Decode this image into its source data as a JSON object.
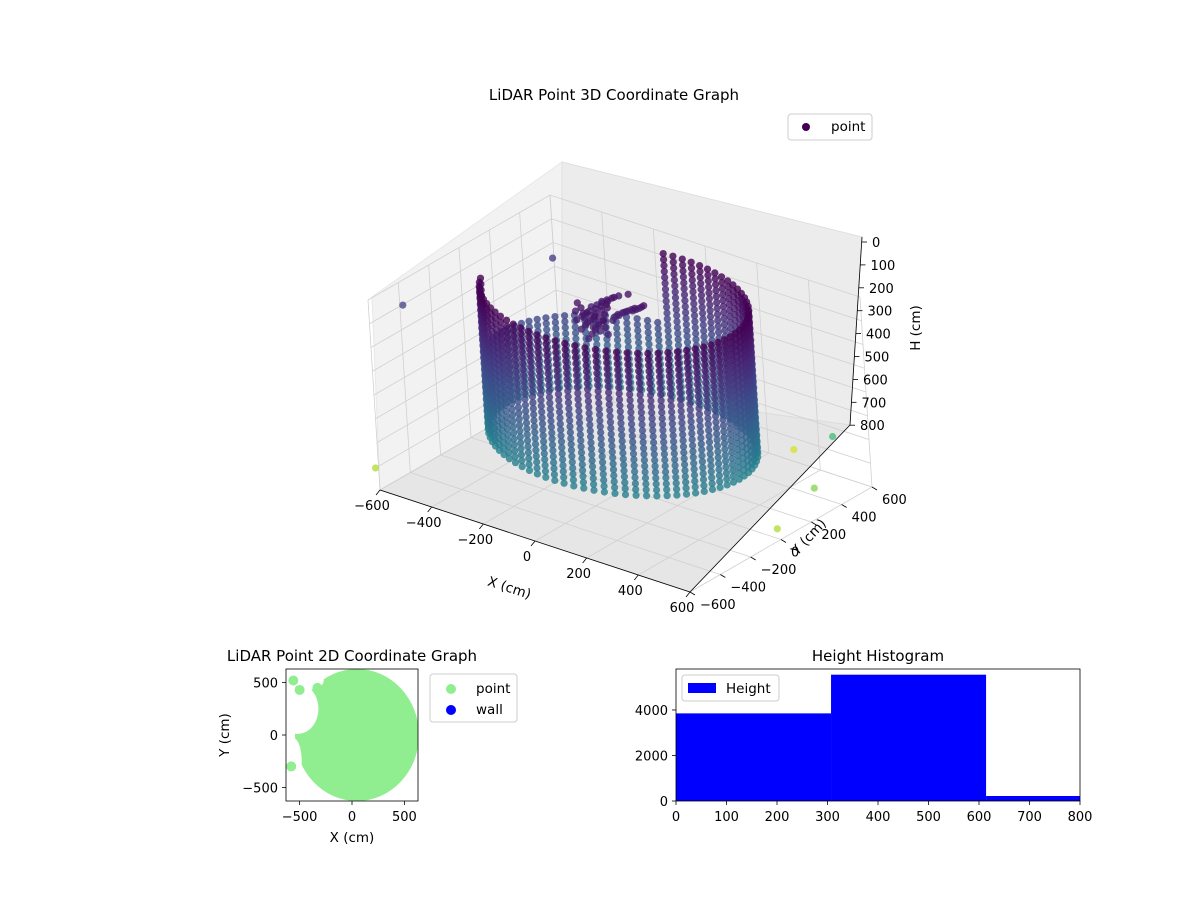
{
  "chart_data": [
    {
      "type": "scatter3d",
      "title": "LiDAR Point 3D Coordinate Graph",
      "xlabel": "X (cm)",
      "ylabel": "Y (cm)",
      "zlabel": "H (cm)",
      "xlim": [
        -600,
        600
      ],
      "ylim": [
        -600,
        600
      ],
      "zlim": [
        800,
        0
      ],
      "xticks": [
        "−600",
        "−400",
        "−200",
        "0",
        "200",
        "400",
        "600"
      ],
      "yticks": [
        "−600",
        "−400",
        "−200",
        "0",
        "200",
        "400",
        "600"
      ],
      "zticks": [
        "0",
        "100",
        "200",
        "300",
        "400",
        "500",
        "600",
        "700",
        "800"
      ],
      "legend": {
        "entries": [
          "point"
        ],
        "placement": "top-right"
      },
      "colormap": "viridis",
      "series": [
        {
          "name": "point",
          "description_shape": "cylindrical wall of points, radius ~450 cm, heights 0-600 cm, plus a few ceiling fragments near the top",
          "wall_radius": 450,
          "wall_height_range": [
            0,
            600
          ],
          "outliers": [
            {
              "x": -650,
              "y": -300,
              "h": 150
            },
            {
              "x": -450,
              "y": 350,
              "h": 120
            },
            {
              "x": 550,
              "y": 450,
              "h": 550
            },
            {
              "x": 620,
              "y": 200,
              "h": 650
            },
            {
              "x": 650,
              "y": -100,
              "h": 700
            },
            {
              "x": -600,
              "y": -620,
              "h": 700
            },
            {
              "x": 300,
              "y": 600,
              "h": 750
            }
          ]
        }
      ],
      "grid": true
    },
    {
      "type": "scatter",
      "title": "LiDAR Point 2D Coordinate Graph",
      "xlabel": "X (cm)",
      "ylabel": "Y (cm)",
      "xlim": [
        -630,
        630
      ],
      "ylim": [
        -630,
        630
      ],
      "xticks": [
        "−500",
        "0",
        "500"
      ],
      "yticks": [
        "−500",
        "0",
        "500"
      ],
      "legend": {
        "entries": [
          "point",
          "wall"
        ],
        "placement": "outside-right"
      },
      "series": [
        {
          "name": "point",
          "color": "#90ee90",
          "shape": "disk radius ~600 cm centered at origin with gaps at upper-left"
        },
        {
          "name": "wall",
          "color": "#0000ff",
          "values": []
        }
      ]
    },
    {
      "type": "histogram",
      "title": "Height Histogram",
      "xlim": [
        0,
        800
      ],
      "ylim": [
        0,
        5800
      ],
      "xticks": [
        "0",
        "100",
        "200",
        "300",
        "400",
        "500",
        "600",
        "700",
        "800"
      ],
      "yticks": [
        "0",
        "2000",
        "4000"
      ],
      "legend": {
        "entries": [
          "Height"
        ],
        "placement": "top-left"
      },
      "color": "#0000ff",
      "bins": [
        {
          "start": 0,
          "end": 307,
          "count": 3850
        },
        {
          "start": 307,
          "end": 614,
          "count": 5550
        },
        {
          "start": 614,
          "end": 800,
          "count": 220
        }
      ]
    }
  ]
}
